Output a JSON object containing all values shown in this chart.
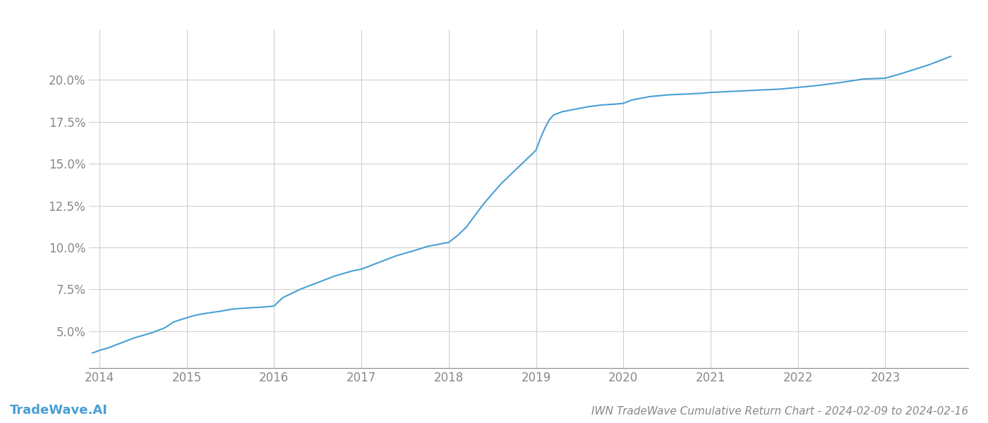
{
  "title": "IWN TradeWave Cumulative Return Chart - 2024-02-09 to 2024-02-16",
  "watermark": "TradeWave.AI",
  "line_color": "#4a9fd4",
  "background_color": "#ffffff",
  "grid_color": "#cccccc",
  "x_years": [
    2014,
    2015,
    2016,
    2017,
    2018,
    2019,
    2020,
    2021,
    2022,
    2023
  ],
  "x_values": [
    2013.92,
    2013.95,
    2014.0,
    2014.1,
    2014.2,
    2014.4,
    2014.6,
    2014.75,
    2014.85,
    2015.0,
    2015.1,
    2015.2,
    2015.4,
    2015.5,
    2015.6,
    2015.75,
    2015.9,
    2016.0,
    2016.1,
    2016.3,
    2016.5,
    2016.7,
    2016.9,
    2017.0,
    2017.1,
    2017.2,
    2017.4,
    2017.6,
    2017.75,
    2017.9,
    2018.0,
    2018.1,
    2018.2,
    2018.3,
    2018.4,
    2018.5,
    2018.6,
    2018.7,
    2018.8,
    2018.9,
    2019.0,
    2019.05,
    2019.1,
    2019.15,
    2019.2,
    2019.3,
    2019.4,
    2019.5,
    2019.6,
    2019.75,
    2019.9,
    2020.0,
    2020.1,
    2020.3,
    2020.5,
    2020.7,
    2020.9,
    2021.0,
    2021.2,
    2021.4,
    2021.6,
    2021.8,
    2022.0,
    2022.2,
    2022.5,
    2022.75,
    2023.0,
    2023.2,
    2023.5,
    2023.75
  ],
  "y_values": [
    3.7,
    3.75,
    3.85,
    4.0,
    4.2,
    4.6,
    4.9,
    5.2,
    5.55,
    5.8,
    5.95,
    6.05,
    6.2,
    6.3,
    6.35,
    6.4,
    6.45,
    6.5,
    7.0,
    7.5,
    7.9,
    8.3,
    8.6,
    8.7,
    8.9,
    9.1,
    9.5,
    9.8,
    10.05,
    10.2,
    10.3,
    10.7,
    11.2,
    11.9,
    12.6,
    13.2,
    13.8,
    14.3,
    14.8,
    15.3,
    15.8,
    16.5,
    17.1,
    17.6,
    17.9,
    18.1,
    18.2,
    18.3,
    18.4,
    18.5,
    18.55,
    18.6,
    18.8,
    19.0,
    19.1,
    19.15,
    19.2,
    19.25,
    19.3,
    19.35,
    19.4,
    19.45,
    19.55,
    19.65,
    19.85,
    20.05,
    20.1,
    20.4,
    20.9,
    21.4
  ],
  "ylim": [
    2.8,
    23.0
  ],
  "xlim": [
    2013.88,
    2023.95
  ],
  "yticks": [
    5.0,
    7.5,
    10.0,
    12.5,
    15.0,
    17.5,
    20.0
  ],
  "title_fontsize": 11,
  "tick_fontsize": 12,
  "watermark_fontsize": 13,
  "line_width": 1.5
}
